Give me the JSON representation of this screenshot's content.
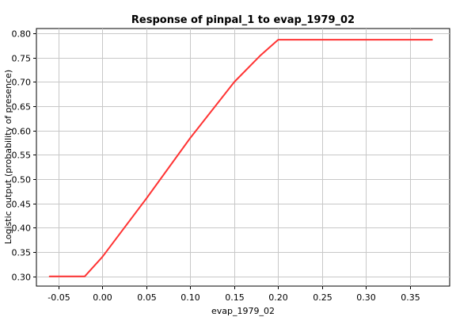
{
  "chart_data": {
    "type": "line",
    "title": "Response of pinpal_1 to evap_1979_02",
    "xlabel": "evap_1979_02",
    "ylabel": "Logistic output (probability of presence)",
    "xlim": [
      -0.075,
      0.395
    ],
    "ylim": [
      0.28,
      0.81
    ],
    "xticks": [
      -0.05,
      0.0,
      0.05,
      0.1,
      0.15,
      0.2,
      0.25,
      0.3,
      0.35
    ],
    "xtick_labels": [
      "-0.05",
      "0.00",
      "0.05",
      "0.10",
      "0.15",
      "0.20",
      "0.25",
      "0.30",
      "0.35"
    ],
    "yticks": [
      0.3,
      0.35,
      0.4,
      0.45,
      0.5,
      0.55,
      0.6,
      0.65,
      0.7,
      0.75,
      0.8
    ],
    "ytick_labels": [
      "0.30",
      "0.35",
      "0.40",
      "0.45",
      "0.50",
      "0.55",
      "0.60",
      "0.65",
      "0.70",
      "0.75",
      "0.80"
    ],
    "grid": true,
    "legend": "none",
    "series": [
      {
        "color": "#ff3333",
        "x": [
          -0.06,
          -0.02,
          0.0,
          0.05,
          0.1,
          0.15,
          0.18,
          0.2,
          0.375
        ],
        "y": [
          0.3,
          0.3,
          0.34,
          0.46,
          0.585,
          0.7,
          0.755,
          0.787,
          0.787
        ]
      }
    ]
  }
}
